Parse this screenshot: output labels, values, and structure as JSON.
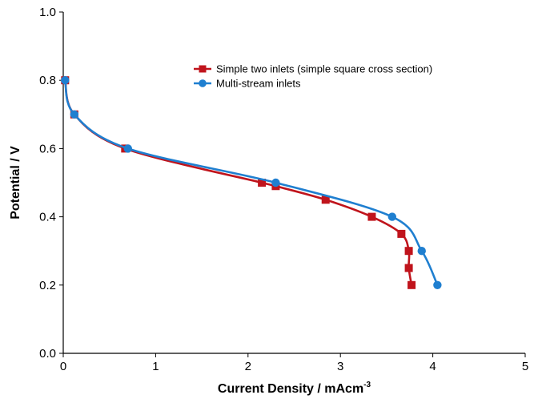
{
  "chart_data": {
    "type": "line",
    "xlabel": "Current Density / mAcm",
    "xlabel_superscript": "-3",
    "ylabel": "Potential / V",
    "xlim": [
      0,
      5
    ],
    "ylim": [
      0.0,
      1.0
    ],
    "x_ticks": [
      "0",
      "1",
      "2",
      "3",
      "4",
      "5"
    ],
    "y_ticks": [
      "0.0",
      "0.2",
      "0.4",
      "0.6",
      "0.8",
      "1.0"
    ],
    "grid": false,
    "legend_position": "top-right",
    "series": [
      {
        "name": "Simple two inlets (simple square cross section)",
        "color": "#c0141c",
        "marker": "square",
        "points": [
          [
            0.02,
            0.8
          ],
          [
            0.12,
            0.7
          ],
          [
            0.67,
            0.6
          ],
          [
            2.15,
            0.5
          ],
          [
            2.3,
            0.49
          ],
          [
            2.84,
            0.45
          ],
          [
            3.34,
            0.4
          ],
          [
            3.66,
            0.35
          ],
          [
            3.74,
            0.3
          ],
          [
            3.74,
            0.25
          ],
          [
            3.77,
            0.2
          ]
        ]
      },
      {
        "name": "Multi-stream inlets",
        "color": "#1f7fd0",
        "marker": "circle",
        "points": [
          [
            0.02,
            0.8
          ],
          [
            0.12,
            0.7
          ],
          [
            0.7,
            0.6
          ],
          [
            2.3,
            0.5
          ],
          [
            3.56,
            0.4
          ],
          [
            3.88,
            0.3
          ],
          [
            4.05,
            0.2
          ]
        ]
      }
    ]
  }
}
